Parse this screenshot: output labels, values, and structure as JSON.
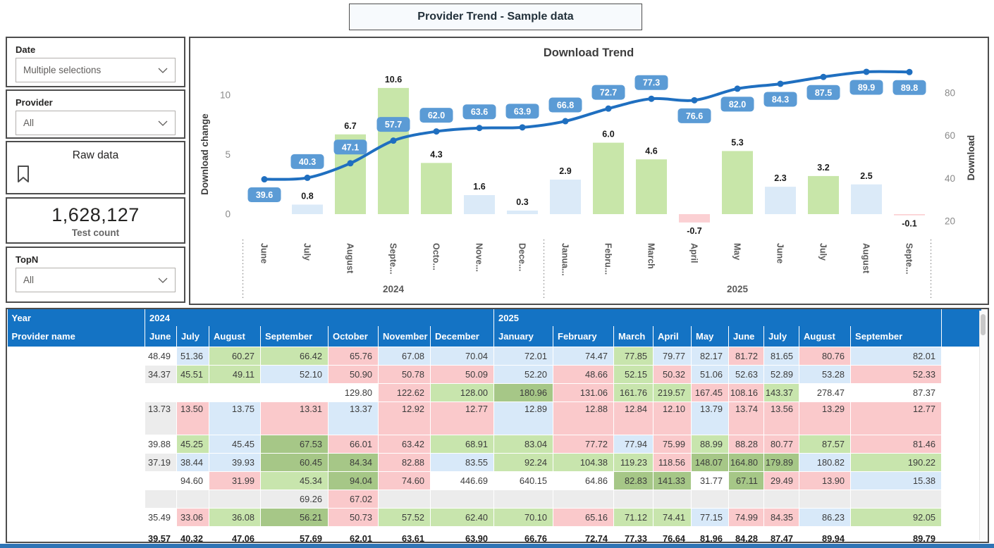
{
  "page_title": "Provider Trend - Sample data",
  "filters": {
    "date": {
      "label": "Date",
      "value": "Multiple selections"
    },
    "provider": {
      "label": "Provider",
      "value": "All"
    },
    "topn": {
      "label": "TopN",
      "value": "All"
    }
  },
  "bookmark": {
    "label": "Raw data"
  },
  "kpi": {
    "value": "1,628,127",
    "label": "Test count"
  },
  "chart_data": {
    "type": "combo-bar-line",
    "title": "Download Trend",
    "left_axis": {
      "label": "Download change",
      "ticks": [
        0,
        5,
        10
      ]
    },
    "right_axis": {
      "label": "Download",
      "ticks": [
        20,
        40,
        60,
        80
      ]
    },
    "categories": [
      "June",
      "July",
      "August",
      "Septe...",
      "Octo...",
      "Nove...",
      "Dece...",
      "Janua...",
      "Febru...",
      "March",
      "April",
      "May",
      "June",
      "July",
      "August",
      "Septe..."
    ],
    "year_groups": [
      {
        "label": "2024",
        "from": 0,
        "to": 6
      },
      {
        "label": "2025",
        "from": 7,
        "to": 15
      }
    ],
    "series": [
      {
        "name": "Download change",
        "type": "bar",
        "values": [
          null,
          0.8,
          6.7,
          10.6,
          4.3,
          1.6,
          0.3,
          2.9,
          6.0,
          4.6,
          -0.7,
          5.3,
          2.3,
          3.2,
          2.5,
          -0.1
        ],
        "bar_colors": [
          "blue",
          "blue",
          "green",
          "green",
          "green",
          "blue",
          "blue",
          "blue",
          "green",
          "green",
          "pink",
          "green",
          "blue",
          "green",
          "blue",
          "pink"
        ]
      },
      {
        "name": "Download",
        "type": "line",
        "values": [
          39.6,
          40.3,
          47.1,
          57.7,
          62.0,
          63.6,
          63.9,
          66.8,
          72.7,
          77.3,
          76.6,
          82.0,
          84.3,
          87.5,
          89.9,
          89.8
        ],
        "label_side": [
          "below",
          "above",
          "above",
          "above",
          "above",
          "above",
          "above",
          "above",
          "above",
          "above",
          "below",
          "below",
          "below",
          "below",
          "below",
          "below"
        ]
      }
    ],
    "colors": {
      "line": "#1F6FC0",
      "label_box": "#5B9BD5",
      "bar_blue": "#DBEAF8",
      "bar_green": "#C8E6A9",
      "bar_pink": "#FBD0D3"
    }
  },
  "table": {
    "year_row": {
      "label": "Year",
      "groups": [
        {
          "label": "2024",
          "span": 7
        },
        {
          "label": "2025",
          "span": 9
        }
      ]
    },
    "columns": [
      "Provider name",
      "June",
      "July",
      "August",
      "September",
      "October",
      "November",
      "December",
      "January",
      "February",
      "March",
      "April",
      "May",
      "June",
      "July",
      "August",
      "September"
    ],
    "colors": {
      "w": "#FFFFFF",
      "g": "#ECECEC",
      "b": "#D8E9F9",
      "gr": "#C8E5AD",
      "dg": "#A6C787",
      "p": "#FAC9CB",
      "header": "#1473C4"
    },
    "rows": [
      {
        "name": "",
        "tall": false,
        "cells": [
          [
            "48.49",
            "w"
          ],
          [
            "51.36",
            "b"
          ],
          [
            "60.27",
            "gr"
          ],
          [
            "66.42",
            "gr"
          ],
          [
            "65.76",
            "p"
          ],
          [
            "67.08",
            "b"
          ],
          [
            "70.04",
            "b"
          ],
          [
            "72.01",
            "b"
          ],
          [
            "74.47",
            "b"
          ],
          [
            "77.85",
            "gr"
          ],
          [
            "79.77",
            "b"
          ],
          [
            "82.17",
            "b"
          ],
          [
            "81.72",
            "p"
          ],
          [
            "81.65",
            "b"
          ],
          [
            "80.76",
            "p"
          ],
          [
            "82.01",
            "b"
          ]
        ]
      },
      {
        "name": "",
        "tall": false,
        "cells": [
          [
            "34.37",
            "g"
          ],
          [
            "45.51",
            "gr"
          ],
          [
            "49.11",
            "gr"
          ],
          [
            "52.10",
            "b"
          ],
          [
            "50.90",
            "p"
          ],
          [
            "50.78",
            "p"
          ],
          [
            "50.09",
            "p"
          ],
          [
            "52.20",
            "b"
          ],
          [
            "48.66",
            "p"
          ],
          [
            "52.15",
            "gr"
          ],
          [
            "50.32",
            "p"
          ],
          [
            "51.06",
            "b"
          ],
          [
            "52.63",
            "b"
          ],
          [
            "52.89",
            "b"
          ],
          [
            "53.28",
            "b"
          ],
          [
            "52.33",
            "p"
          ]
        ]
      },
      {
        "name": "",
        "tall": false,
        "cells": [
          [
            "",
            "w"
          ],
          [
            "",
            "w"
          ],
          [
            "",
            "w"
          ],
          [
            "",
            "w"
          ],
          [
            "129.80",
            "w"
          ],
          [
            "122.62",
            "p"
          ],
          [
            "128.00",
            "gr"
          ],
          [
            "180.96",
            "dg"
          ],
          [
            "131.06",
            "p"
          ],
          [
            "161.76",
            "gr"
          ],
          [
            "219.57",
            "gr"
          ],
          [
            "167.45",
            "p"
          ],
          [
            "108.16",
            "p"
          ],
          [
            "143.37",
            "gr"
          ],
          [
            "278.47",
            "w"
          ],
          [
            "87.37",
            "w"
          ]
        ]
      },
      {
        "name": "",
        "tall": true,
        "cells": [
          [
            "13.73",
            "g"
          ],
          [
            "13.50",
            "p"
          ],
          [
            "13.75",
            "b"
          ],
          [
            "13.31",
            "p"
          ],
          [
            "13.37",
            "b"
          ],
          [
            "12.92",
            "p"
          ],
          [
            "12.77",
            "p"
          ],
          [
            "12.89",
            "b"
          ],
          [
            "12.88",
            "p"
          ],
          [
            "12.84",
            "p"
          ],
          [
            "12.10",
            "p"
          ],
          [
            "13.79",
            "b"
          ],
          [
            "13.74",
            "p"
          ],
          [
            "13.56",
            "p"
          ],
          [
            "13.29",
            "p"
          ],
          [
            "12.77",
            "p"
          ]
        ]
      },
      {
        "name": "",
        "tall": false,
        "cells": [
          [
            "39.88",
            "w"
          ],
          [
            "45.25",
            "gr"
          ],
          [
            "45.45",
            "b"
          ],
          [
            "67.53",
            "dg"
          ],
          [
            "66.01",
            "p"
          ],
          [
            "63.42",
            "p"
          ],
          [
            "68.91",
            "gr"
          ],
          [
            "83.04",
            "gr"
          ],
          [
            "77.72",
            "p"
          ],
          [
            "77.94",
            "b"
          ],
          [
            "75.99",
            "p"
          ],
          [
            "88.99",
            "gr"
          ],
          [
            "88.28",
            "p"
          ],
          [
            "80.77",
            "p"
          ],
          [
            "87.57",
            "gr"
          ],
          [
            "81.46",
            "p"
          ]
        ]
      },
      {
        "name": "",
        "tall": false,
        "cells": [
          [
            "37.19",
            "g"
          ],
          [
            "38.44",
            "b"
          ],
          [
            "39.93",
            "b"
          ],
          [
            "60.45",
            "dg"
          ],
          [
            "84.34",
            "dg"
          ],
          [
            "82.88",
            "p"
          ],
          [
            "83.55",
            "b"
          ],
          [
            "92.24",
            "gr"
          ],
          [
            "104.38",
            "gr"
          ],
          [
            "119.23",
            "gr"
          ],
          [
            "118.56",
            "p"
          ],
          [
            "148.07",
            "dg"
          ],
          [
            "164.80",
            "dg"
          ],
          [
            "179.89",
            "dg"
          ],
          [
            "180.82",
            "b"
          ],
          [
            "190.22",
            "gr"
          ]
        ]
      },
      {
        "name": "",
        "tall": false,
        "cells": [
          [
            "",
            "w"
          ],
          [
            "94.60",
            "w"
          ],
          [
            "31.99",
            "p"
          ],
          [
            "45.34",
            "gr"
          ],
          [
            "94.04",
            "dg"
          ],
          [
            "74.60",
            "p"
          ],
          [
            "446.69",
            "w"
          ],
          [
            "640.15",
            "w"
          ],
          [
            "64.86",
            "w"
          ],
          [
            "82.83",
            "dg"
          ],
          [
            "141.33",
            "dg"
          ],
          [
            "31.77",
            "w"
          ],
          [
            "67.11",
            "dg"
          ],
          [
            "29.49",
            "p"
          ],
          [
            "13.90",
            "p"
          ],
          [
            "15.38",
            "b"
          ]
        ]
      },
      {
        "name": "",
        "tall": false,
        "cells": [
          [
            "",
            "g"
          ],
          [
            "",
            "g"
          ],
          [
            "",
            "g"
          ],
          [
            "69.26",
            "g"
          ],
          [
            "67.02",
            "p"
          ],
          [
            "",
            "g"
          ],
          [
            "",
            "g"
          ],
          [
            "",
            "g"
          ],
          [
            "",
            "g"
          ],
          [
            "",
            "g"
          ],
          [
            "",
            "g"
          ],
          [
            "",
            "g"
          ],
          [
            "",
            "g"
          ],
          [
            "",
            "g"
          ],
          [
            "",
            "g"
          ],
          [
            "",
            "g"
          ]
        ]
      },
      {
        "name": "",
        "tall": false,
        "cells": [
          [
            "35.49",
            "w"
          ],
          [
            "33.06",
            "p"
          ],
          [
            "36.08",
            "gr"
          ],
          [
            "56.21",
            "dg"
          ],
          [
            "50.73",
            "p"
          ],
          [
            "57.52",
            "gr"
          ],
          [
            "62.40",
            "gr"
          ],
          [
            "70.10",
            "gr"
          ],
          [
            "65.16",
            "p"
          ],
          [
            "71.12",
            "gr"
          ],
          [
            "74.41",
            "gr"
          ],
          [
            "77.15",
            "b"
          ],
          [
            "74.99",
            "p"
          ],
          [
            "84.35",
            "p"
          ],
          [
            "86.23",
            "b"
          ],
          [
            "92.05",
            "gr"
          ]
        ]
      }
    ],
    "total_row": {
      "name": "",
      "values": [
        "39.57",
        "40.32",
        "47.06",
        "57.69",
        "62.01",
        "63.61",
        "63.90",
        "66.76",
        "72.74",
        "77.33",
        "76.64",
        "81.96",
        "84.28",
        "87.47",
        "89.94",
        "89.79"
      ]
    }
  }
}
